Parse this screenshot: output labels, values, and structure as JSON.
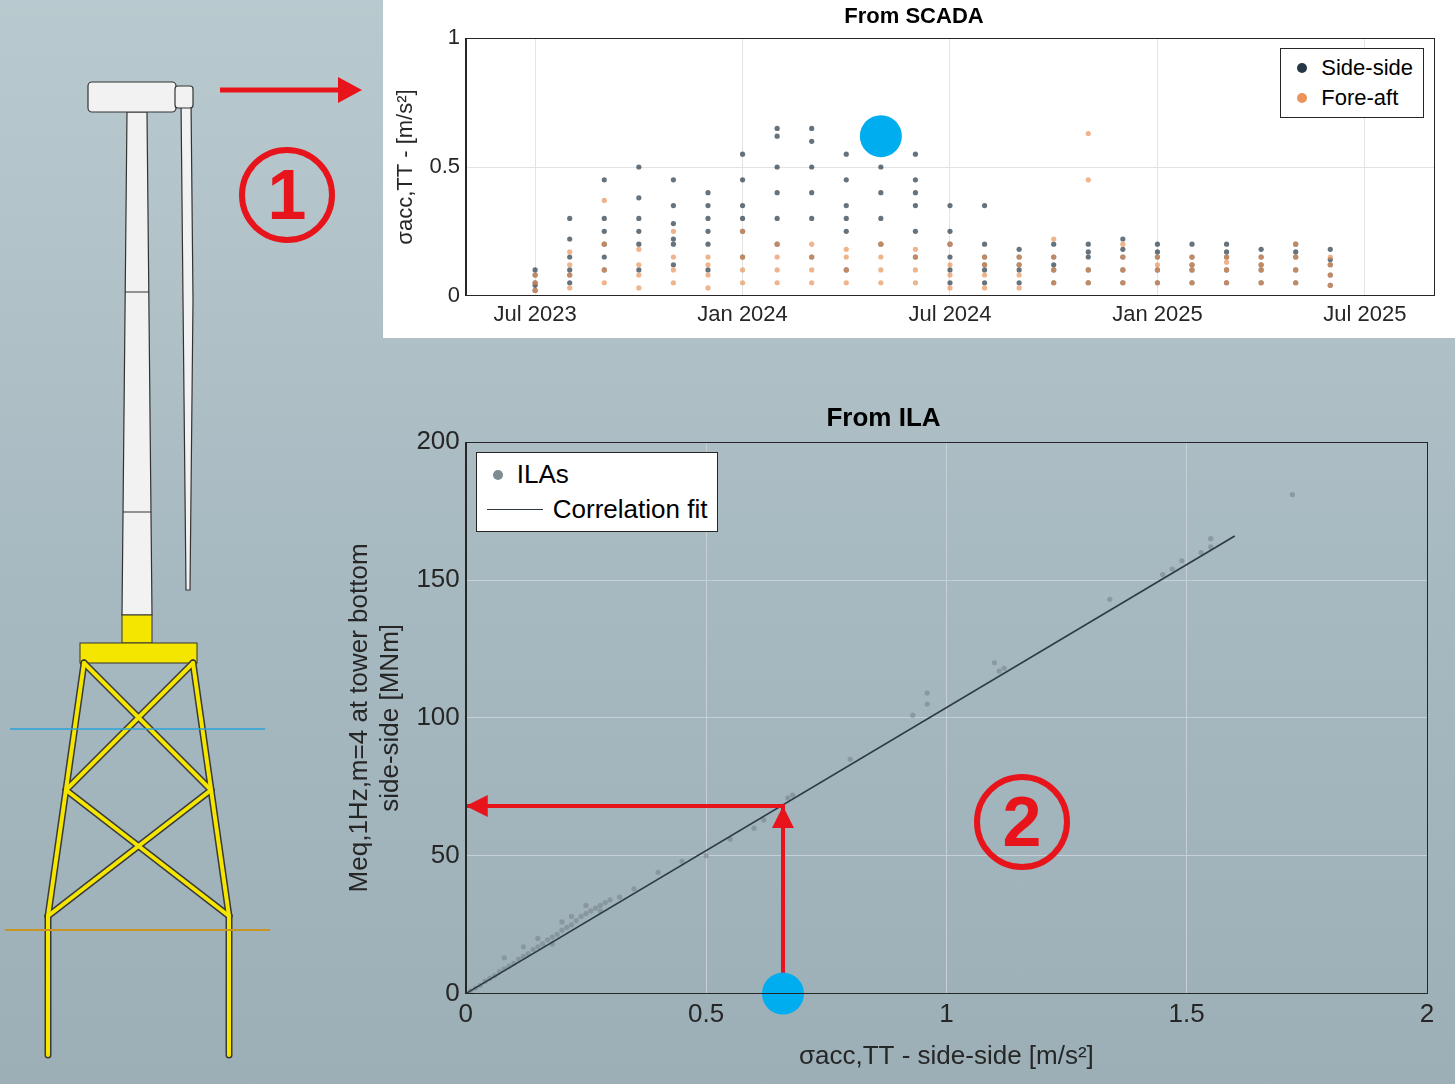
{
  "chart_data": [
    {
      "type": "scatter",
      "title": "From SCADA",
      "ylabel": "σacc,TT - [m/s²]",
      "xlim": [
        "2023-05",
        "2025-09"
      ],
      "xticks": [
        {
          "value": "2023-07",
          "label": "Jul 2023"
        },
        {
          "value": "2024-01",
          "label": "Jan 2024"
        },
        {
          "value": "2024-07",
          "label": "Jul 2024"
        },
        {
          "value": "2025-01",
          "label": "Jan 2025"
        },
        {
          "value": "2025-07",
          "label": "Jul 2025"
        }
      ],
      "ylim": [
        0,
        1
      ],
      "yticks": [
        0,
        0.5,
        1
      ],
      "grid": true,
      "legend": "upper right",
      "annotations": [
        "1"
      ],
      "series": [
        {
          "name": "Side-side",
          "color": "#253746",
          "marker": "circle",
          "x": [
            "2023-07",
            "2023-08",
            "2023-09",
            "2023-10",
            "2023-11",
            "2023-12",
            "2024-01",
            "2024-02",
            "2024-03",
            "2024-04",
            "2024-05",
            "2024-06",
            "2024-07",
            "2024-08",
            "2024-09",
            "2024-10",
            "2024-11",
            "2024-12",
            "2025-01",
            "2025-02",
            "2025-03",
            "2025-04",
            "2025-05",
            "2025-06"
          ],
          "values": [
            [
              0.02,
              0.05,
              0.08,
              0.04,
              0.1
            ],
            [
              0.05,
              0.1,
              0.15,
              0.22,
              0.08,
              0.3
            ],
            [
              0.1,
              0.2,
              0.3,
              0.45,
              0.25,
              0.15
            ],
            [
              0.1,
              0.2,
              0.3,
              0.38,
              0.5,
              0.25
            ],
            [
              0.12,
              0.2,
              0.28,
              0.35,
              0.45,
              0.22
            ],
            [
              0.1,
              0.2,
              0.3,
              0.4,
              0.35,
              0.25
            ],
            [
              0.15,
              0.25,
              0.35,
              0.45,
              0.55,
              0.3
            ],
            [
              0.2,
              0.3,
              0.4,
              0.5,
              0.62,
              0.65
            ],
            [
              0.15,
              0.3,
              0.4,
              0.5,
              0.6,
              0.65
            ],
            [
              0.1,
              0.25,
              0.35,
              0.45,
              0.55,
              0.3
            ],
            [
              0.2,
              0.3,
              0.4,
              0.5,
              0.6,
              0.65
            ],
            [
              0.15,
              0.25,
              0.35,
              0.45,
              0.55,
              0.4
            ],
            [
              0.05,
              0.1,
              0.15,
              0.25,
              0.35,
              0.2
            ],
            [
              0.05,
              0.1,
              0.15,
              0.12,
              0.2,
              0.35
            ],
            [
              0.05,
              0.1,
              0.15,
              0.18,
              0.12
            ],
            [
              0.05,
              0.1,
              0.15,
              0.2,
              0.12
            ],
            [
              0.05,
              0.1,
              0.15,
              0.2,
              0.17
            ],
            [
              0.05,
              0.1,
              0.15,
              0.22,
              0.18
            ],
            [
              0.05,
              0.1,
              0.15,
              0.2,
              0.17
            ],
            [
              0.05,
              0.1,
              0.15,
              0.2,
              0.12
            ],
            [
              0.05,
              0.1,
              0.15,
              0.2,
              0.17
            ],
            [
              0.05,
              0.1,
              0.15,
              0.18,
              0.12
            ],
            [
              0.05,
              0.1,
              0.15,
              0.2,
              0.17
            ],
            [
              0.04,
              0.08,
              0.12,
              0.18,
              0.14
            ]
          ]
        },
        {
          "name": "Fore-aft",
          "color": "#e8945a",
          "marker": "circle",
          "x": [
            "2023-07",
            "2023-08",
            "2023-09",
            "2023-10",
            "2023-11",
            "2023-12",
            "2024-01",
            "2024-02",
            "2024-03",
            "2024-04",
            "2024-05",
            "2024-06",
            "2024-07",
            "2024-08",
            "2024-09",
            "2024-10",
            "2024-11",
            "2024-12",
            "2025-01",
            "2025-02",
            "2025-03",
            "2025-04",
            "2025-05",
            "2025-06"
          ],
          "values": [
            [
              0.02,
              0.05,
              0.08
            ],
            [
              0.03,
              0.08,
              0.17,
              0.12
            ],
            [
              0.05,
              0.1,
              0.2,
              0.37
            ],
            [
              0.03,
              0.08,
              0.12,
              0.18
            ],
            [
              0.05,
              0.1,
              0.15,
              0.25
            ],
            [
              0.03,
              0.08,
              0.12,
              0.15
            ],
            [
              0.05,
              0.1,
              0.15,
              0.25
            ],
            [
              0.05,
              0.1,
              0.15,
              0.2
            ],
            [
              0.05,
              0.1,
              0.15,
              0.2
            ],
            [
              0.05,
              0.1,
              0.15,
              0.18
            ],
            [
              0.05,
              0.1,
              0.15,
              0.2
            ],
            [
              0.05,
              0.1,
              0.15,
              0.18
            ],
            [
              0.03,
              0.08,
              0.12,
              0.2
            ],
            [
              0.03,
              0.08,
              0.12,
              0.15
            ],
            [
              0.03,
              0.08,
              0.12,
              0.15
            ],
            [
              0.05,
              0.1,
              0.15,
              0.22
            ],
            [
              0.05,
              0.1,
              0.45,
              0.63
            ],
            [
              0.05,
              0.1,
              0.15,
              0.2
            ],
            [
              0.05,
              0.1,
              0.15,
              0.12
            ],
            [
              0.05,
              0.1,
              0.15,
              0.12
            ],
            [
              0.05,
              0.1,
              0.15,
              0.13
            ],
            [
              0.05,
              0.1,
              0.15,
              0.12
            ],
            [
              0.05,
              0.1,
              0.15,
              0.2
            ],
            [
              0.04,
              0.08,
              0.12,
              0.15
            ]
          ]
        },
        {
          "color": "#00aeef",
          "marker": "disc",
          "x": [
            "2024-05"
          ],
          "values": [
            [
              0.62
            ]
          ]
        }
      ]
    },
    {
      "type": "scatter",
      "title": "From ILA",
      "xlabel": "σacc,TT - side-side [m/s²]",
      "ylabel": [
        "Meq,1Hz,m=4 at tower bottom",
        "side-side [MNm]"
      ],
      "xlim": [
        0,
        2
      ],
      "xticks": [
        0,
        0.5,
        1,
        1.5,
        2
      ],
      "ylim": [
        0,
        200
      ],
      "yticks": [
        0,
        50,
        100,
        150,
        200
      ],
      "grid": true,
      "legend": "upper left",
      "annotations": [
        "2"
      ],
      "series": [
        {
          "name": "ILAs",
          "color": "#7f8b92",
          "marker": "circle",
          "x": [
            0.01,
            0.02,
            0.03,
            0.04,
            0.05,
            0.06,
            0.07,
            0.08,
            0.09,
            0.1,
            0.11,
            0.12,
            0.13,
            0.14,
            0.15,
            0.16,
            0.17,
            0.18,
            0.19,
            0.2,
            0.21,
            0.22,
            0.23,
            0.24,
            0.25,
            0.26,
            0.27,
            0.28,
            0.29,
            0.3,
            0.08,
            0.12,
            0.15,
            0.18,
            0.2,
            0.22,
            0.25,
            0.28,
            0.32,
            0.35,
            0.4,
            0.45,
            0.5,
            0.55,
            0.6,
            0.62,
            0.67,
            0.68,
            0.8,
            0.93,
            0.96,
            0.96,
            1.1,
            1.11,
            1.12,
            1.34,
            1.45,
            1.47,
            1.49,
            1.53,
            1.55,
            1.55,
            1.72
          ],
          "values": [
            1,
            2,
            3,
            4.5,
            5.5,
            6.5,
            8,
            9,
            10,
            11,
            12.5,
            13.5,
            14.5,
            16,
            17,
            18,
            19.5,
            20.5,
            21.5,
            23,
            24,
            25,
            26.5,
            28,
            29,
            30,
            31,
            32,
            33,
            34,
            13,
            17,
            20,
            18,
            26,
            28,
            32,
            30,
            35,
            38,
            44,
            48,
            50,
            56,
            60,
            63,
            71,
            72,
            85,
            101,
            105,
            109,
            120,
            117,
            118,
            143,
            152,
            154,
            157,
            160,
            162,
            165,
            181
          ]
        },
        {
          "name": "Correlation fit",
          "type": "line",
          "color": "#2b3a44",
          "x": [
            0,
            1.6
          ],
          "values": [
            0,
            166
          ]
        },
        {
          "type": "line",
          "line_style": "arrow",
          "color": "#e8141b",
          "x": [
            0.66,
            0.66,
            0
          ],
          "values": [
            0,
            68,
            68
          ]
        },
        {
          "color": "#00aeef",
          "marker": "disc",
          "x": [
            0.66
          ],
          "values": [
            0
          ]
        }
      ]
    }
  ]
}
